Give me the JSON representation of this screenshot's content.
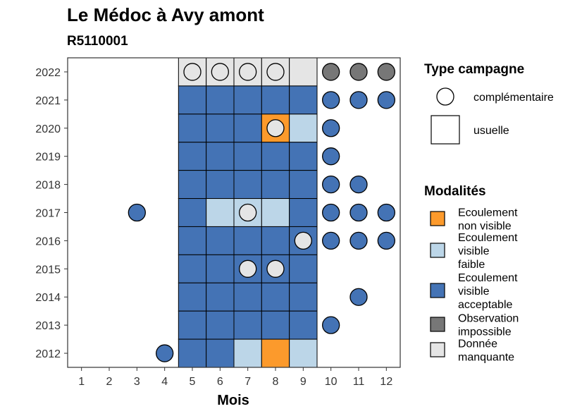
{
  "chart_data": {
    "type": "heatmap",
    "title": "Le Médoc à Avy amont",
    "subtitle": "R5110001",
    "xlabel": "Mois",
    "ylabel": "",
    "x_ticks": [
      "1",
      "2",
      "3",
      "4",
      "5",
      "6",
      "7",
      "8",
      "9",
      "10",
      "11",
      "12"
    ],
    "y_ticks": [
      "2012",
      "2013",
      "2014",
      "2015",
      "2016",
      "2017",
      "2018",
      "2019",
      "2020",
      "2021",
      "2022"
    ],
    "xlim": [
      0.5,
      12.5
    ],
    "ylim": [
      2011.5,
      2022.5
    ],
    "usual_campaign_months": [
      5,
      6,
      7,
      8,
      9
    ],
    "colors": {
      "ecoulement_non_visible": "#fc9a2c",
      "ecoulement_visible_faible": "#bcd6e8",
      "ecoulement_visible_acceptable": "#4473b5",
      "observation_impossible": "#777777",
      "donnee_manquante": "#e5e5e5"
    },
    "usuelle": [
      {
        "year": 2022,
        "month": 5,
        "mod": "donnee_manquante"
      },
      {
        "year": 2022,
        "month": 6,
        "mod": "donnee_manquante"
      },
      {
        "year": 2022,
        "month": 7,
        "mod": "donnee_manquante"
      },
      {
        "year": 2022,
        "month": 8,
        "mod": "donnee_manquante"
      },
      {
        "year": 2022,
        "month": 9,
        "mod": "donnee_manquante"
      },
      {
        "year": 2021,
        "month": 5,
        "mod": "ecoulement_visible_acceptable"
      },
      {
        "year": 2021,
        "month": 6,
        "mod": "ecoulement_visible_acceptable"
      },
      {
        "year": 2021,
        "month": 7,
        "mod": "ecoulement_visible_acceptable"
      },
      {
        "year": 2021,
        "month": 8,
        "mod": "ecoulement_visible_acceptable"
      },
      {
        "year": 2021,
        "month": 9,
        "mod": "ecoulement_visible_acceptable"
      },
      {
        "year": 2020,
        "month": 5,
        "mod": "ecoulement_visible_acceptable"
      },
      {
        "year": 2020,
        "month": 6,
        "mod": "ecoulement_visible_acceptable"
      },
      {
        "year": 2020,
        "month": 7,
        "mod": "ecoulement_visible_acceptable"
      },
      {
        "year": 2020,
        "month": 8,
        "mod": "ecoulement_non_visible"
      },
      {
        "year": 2020,
        "month": 9,
        "mod": "ecoulement_visible_faible"
      },
      {
        "year": 2019,
        "month": 5,
        "mod": "ecoulement_visible_acceptable"
      },
      {
        "year": 2019,
        "month": 6,
        "mod": "ecoulement_visible_acceptable"
      },
      {
        "year": 2019,
        "month": 7,
        "mod": "ecoulement_visible_acceptable"
      },
      {
        "year": 2019,
        "month": 8,
        "mod": "ecoulement_visible_acceptable"
      },
      {
        "year": 2019,
        "month": 9,
        "mod": "ecoulement_visible_acceptable"
      },
      {
        "year": 2018,
        "month": 5,
        "mod": "ecoulement_visible_acceptable"
      },
      {
        "year": 2018,
        "month": 6,
        "mod": "ecoulement_visible_acceptable"
      },
      {
        "year": 2018,
        "month": 7,
        "mod": "ecoulement_visible_acceptable"
      },
      {
        "year": 2018,
        "month": 8,
        "mod": "ecoulement_visible_acceptable"
      },
      {
        "year": 2018,
        "month": 9,
        "mod": "ecoulement_visible_acceptable"
      },
      {
        "year": 2017,
        "month": 5,
        "mod": "ecoulement_visible_acceptable"
      },
      {
        "year": 2017,
        "month": 6,
        "mod": "ecoulement_visible_faible"
      },
      {
        "year": 2017,
        "month": 7,
        "mod": "ecoulement_visible_faible"
      },
      {
        "year": 2017,
        "month": 8,
        "mod": "ecoulement_visible_faible"
      },
      {
        "year": 2017,
        "month": 9,
        "mod": "ecoulement_visible_acceptable"
      },
      {
        "year": 2016,
        "month": 5,
        "mod": "ecoulement_visible_acceptable"
      },
      {
        "year": 2016,
        "month": 6,
        "mod": "ecoulement_visible_acceptable"
      },
      {
        "year": 2016,
        "month": 7,
        "mod": "ecoulement_visible_acceptable"
      },
      {
        "year": 2016,
        "month": 8,
        "mod": "ecoulement_visible_acceptable"
      },
      {
        "year": 2016,
        "month": 9,
        "mod": "ecoulement_visible_acceptable"
      },
      {
        "year": 2015,
        "month": 5,
        "mod": "ecoulement_visible_acceptable"
      },
      {
        "year": 2015,
        "month": 6,
        "mod": "ecoulement_visible_acceptable"
      },
      {
        "year": 2015,
        "month": 7,
        "mod": "ecoulement_visible_acceptable"
      },
      {
        "year": 2015,
        "month": 8,
        "mod": "ecoulement_visible_acceptable"
      },
      {
        "year": 2015,
        "month": 9,
        "mod": "ecoulement_visible_acceptable"
      },
      {
        "year": 2014,
        "month": 5,
        "mod": "ecoulement_visible_acceptable"
      },
      {
        "year": 2014,
        "month": 6,
        "mod": "ecoulement_visible_acceptable"
      },
      {
        "year": 2014,
        "month": 7,
        "mod": "ecoulement_visible_acceptable"
      },
      {
        "year": 2014,
        "month": 8,
        "mod": "ecoulement_visible_acceptable"
      },
      {
        "year": 2014,
        "month": 9,
        "mod": "ecoulement_visible_acceptable"
      },
      {
        "year": 2013,
        "month": 5,
        "mod": "ecoulement_visible_acceptable"
      },
      {
        "year": 2013,
        "month": 6,
        "mod": "ecoulement_visible_acceptable"
      },
      {
        "year": 2013,
        "month": 7,
        "mod": "ecoulement_visible_acceptable"
      },
      {
        "year": 2013,
        "month": 8,
        "mod": "ecoulement_visible_acceptable"
      },
      {
        "year": 2013,
        "month": 9,
        "mod": "ecoulement_visible_acceptable"
      },
      {
        "year": 2012,
        "month": 5,
        "mod": "ecoulement_visible_acceptable"
      },
      {
        "year": 2012,
        "month": 6,
        "mod": "ecoulement_visible_acceptable"
      },
      {
        "year": 2012,
        "month": 7,
        "mod": "ecoulement_visible_faible"
      },
      {
        "year": 2012,
        "month": 8,
        "mod": "ecoulement_non_visible"
      },
      {
        "year": 2012,
        "month": 9,
        "mod": "ecoulement_visible_faible"
      }
    ],
    "complementaire": [
      {
        "year": 2022,
        "month": 5,
        "mod": "donnee_manquante"
      },
      {
        "year": 2022,
        "month": 6,
        "mod": "donnee_manquante"
      },
      {
        "year": 2022,
        "month": 7,
        "mod": "donnee_manquante"
      },
      {
        "year": 2022,
        "month": 8,
        "mod": "donnee_manquante"
      },
      {
        "year": 2022,
        "month": 10,
        "mod": "observation_impossible"
      },
      {
        "year": 2022,
        "month": 11,
        "mod": "observation_impossible"
      },
      {
        "year": 2022,
        "month": 12,
        "mod": "observation_impossible"
      },
      {
        "year": 2021,
        "month": 10,
        "mod": "ecoulement_visible_acceptable"
      },
      {
        "year": 2021,
        "month": 11,
        "mod": "ecoulement_visible_acceptable"
      },
      {
        "year": 2021,
        "month": 12,
        "mod": "ecoulement_visible_acceptable"
      },
      {
        "year": 2020,
        "month": 8,
        "mod": "donnee_manquante"
      },
      {
        "year": 2020,
        "month": 10,
        "mod": "ecoulement_visible_acceptable"
      },
      {
        "year": 2019,
        "month": 10,
        "mod": "ecoulement_visible_acceptable"
      },
      {
        "year": 2018,
        "month": 10,
        "mod": "ecoulement_visible_acceptable"
      },
      {
        "year": 2018,
        "month": 11,
        "mod": "ecoulement_visible_acceptable"
      },
      {
        "year": 2017,
        "month": 3,
        "mod": "ecoulement_visible_acceptable"
      },
      {
        "year": 2017,
        "month": 7,
        "mod": "donnee_manquante"
      },
      {
        "year": 2017,
        "month": 10,
        "mod": "ecoulement_visible_acceptable"
      },
      {
        "year": 2017,
        "month": 11,
        "mod": "ecoulement_visible_acceptable"
      },
      {
        "year": 2017,
        "month": 12,
        "mod": "ecoulement_visible_acceptable"
      },
      {
        "year": 2016,
        "month": 9,
        "mod": "donnee_manquante"
      },
      {
        "year": 2016,
        "month": 10,
        "mod": "ecoulement_visible_acceptable"
      },
      {
        "year": 2016,
        "month": 11,
        "mod": "ecoulement_visible_acceptable"
      },
      {
        "year": 2016,
        "month": 12,
        "mod": "ecoulement_visible_acceptable"
      },
      {
        "year": 2015,
        "month": 7,
        "mod": "donnee_manquante"
      },
      {
        "year": 2015,
        "month": 8,
        "mod": "donnee_manquante"
      },
      {
        "year": 2014,
        "month": 11,
        "mod": "ecoulement_visible_acceptable"
      },
      {
        "year": 2013,
        "month": 10,
        "mod": "ecoulement_visible_acceptable"
      },
      {
        "year": 2012,
        "month": 4,
        "mod": "ecoulement_visible_acceptable"
      }
    ],
    "legend_type": {
      "title": "Type campagne",
      "items": [
        {
          "key": "complementaire",
          "label": "complémentaire"
        },
        {
          "key": "usuelle",
          "label": "usuelle"
        }
      ]
    },
    "legend_mod": {
      "title": "Modalités",
      "items": [
        {
          "key": "ecoulement_non_visible",
          "lines": [
            "Ecoulement",
            "non visible"
          ]
        },
        {
          "key": "ecoulement_visible_faible",
          "lines": [
            "Ecoulement",
            "visible",
            "faible"
          ]
        },
        {
          "key": "ecoulement_visible_acceptable",
          "lines": [
            "Ecoulement",
            "visible",
            "acceptable"
          ]
        },
        {
          "key": "observation_impossible",
          "lines": [
            "Observation",
            "impossible"
          ]
        },
        {
          "key": "donnee_manquante",
          "lines": [
            "Donnée",
            "manquante"
          ]
        }
      ]
    },
    "legend_position": "right",
    "grid": false
  }
}
